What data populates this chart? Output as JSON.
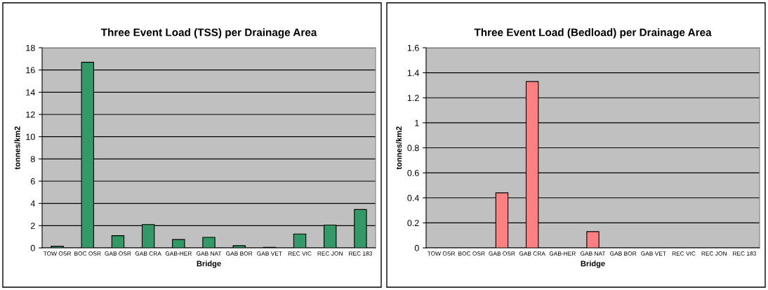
{
  "chart_data": [
    {
      "type": "bar",
      "title": "Three Event Load (TSS) per Drainage Area",
      "xlabel": "Bridge",
      "ylabel": "tonnes/km2",
      "categories": [
        "TOW OSR",
        "BOC OSR",
        "GAB OSR",
        "GAB CRA",
        "GAB-HER",
        "GAB NAT",
        "GAB BOR",
        "GAB VET",
        "REC VIC",
        "REC JON",
        "REC 183"
      ],
      "values": [
        0.15,
        16.7,
        1.1,
        2.1,
        0.75,
        0.95,
        0.2,
        0.05,
        1.25,
        2.05,
        3.45
      ],
      "color": "#339966",
      "ylim": [
        0,
        18
      ],
      "yticks": [
        0,
        2,
        4,
        6,
        8,
        10,
        12,
        14,
        16,
        18
      ],
      "grid": "y",
      "legend": false
    },
    {
      "type": "bar",
      "title": "Three Event Load (Bedload) per Drainage Area",
      "xlabel": "Bridge",
      "ylabel": "tonnes/km2",
      "categories": [
        "TOW OSR",
        "BOC OSR",
        "GAB OSR",
        "GAB CRA",
        "GAB-HER",
        "GAB NAT",
        "GAB BOR",
        "GAB VET",
        "REC VIC",
        "REC JON",
        "REC 183"
      ],
      "values": [
        0,
        0,
        0.44,
        1.33,
        0,
        0.13,
        0,
        0,
        0,
        0,
        0
      ],
      "color": "#ff8080",
      "ylim": [
        0,
        1.6
      ],
      "yticks": [
        0,
        0.2,
        0.4,
        0.6,
        0.8,
        1,
        1.2,
        1.4,
        1.6
      ],
      "grid": "y",
      "legend": false
    }
  ]
}
